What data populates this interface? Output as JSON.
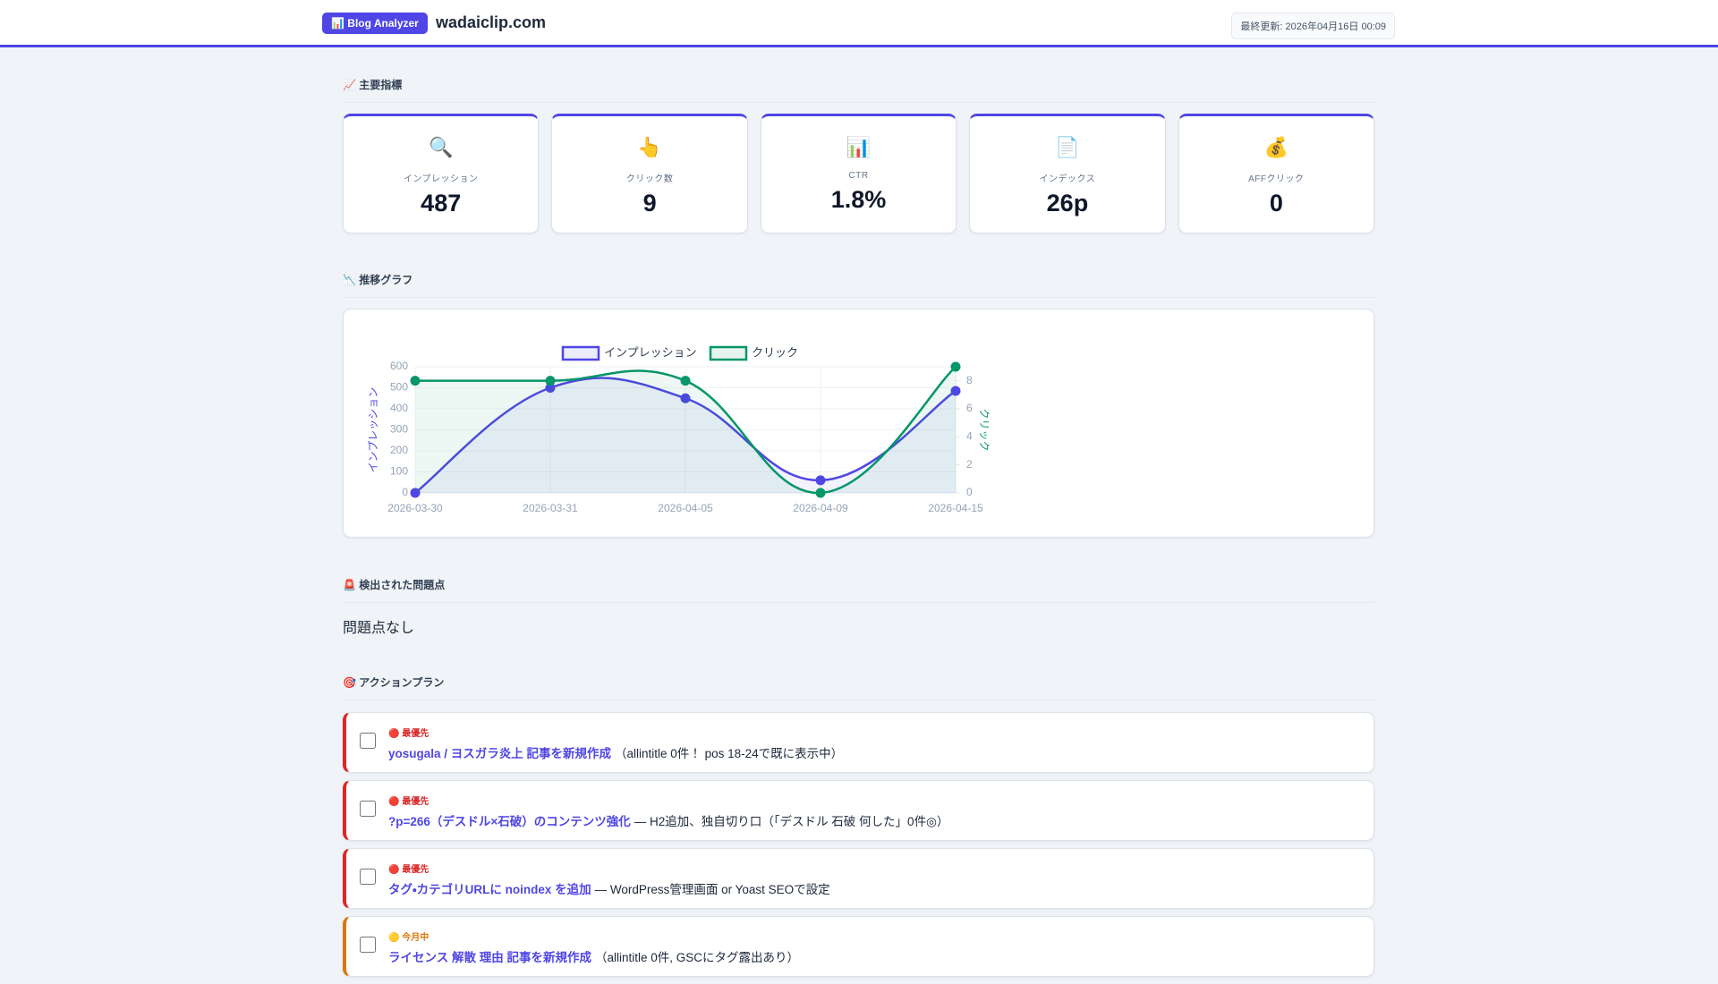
{
  "header": {
    "badge": "📊 Blog Analyzer",
    "site": "wadaiclip.com",
    "updated": "最終更新: 2026年04月16日 00:09"
  },
  "sections": {
    "metrics": "📈 主要指標",
    "graph": "📉 推移グラフ",
    "issues": "🚨 検出された問題点",
    "actions": "🎯 アクションプラン"
  },
  "metrics": [
    {
      "icon": "🔍",
      "label": "インプレッション",
      "value": 487
    },
    {
      "icon": "👆",
      "label": "クリック数",
      "value": 9
    },
    {
      "icon": "📊",
      "label": "CTR",
      "value": "1.8%"
    },
    {
      "icon": "📄",
      "label": "インデックス",
      "value": "26p"
    },
    {
      "icon": "💰",
      "label": "AFFクリック",
      "value": 0
    }
  ],
  "chart_data": {
    "type": "line",
    "categories": [
      "2026-03-30",
      "2026-03-31",
      "2026-04-05",
      "2026-04-09",
      "2026-04-15"
    ],
    "series": [
      {
        "name": "インプレッション",
        "color": "#4f46e5",
        "values": [
          0,
          500,
          450,
          60,
          485
        ]
      },
      {
        "name": "クリック",
        "color": "#059669",
        "axis": "y2",
        "values": [
          8,
          8,
          8,
          0,
          9
        ]
      }
    ],
    "ylabel": "インプレッション",
    "y2label": "クリック",
    "ylim": [
      0,
      600
    ],
    "yticks": [
      0,
      100,
      200,
      300,
      400,
      500,
      600
    ],
    "y2lim": [
      0,
      9
    ],
    "y2ticks": [
      0,
      2,
      4,
      6,
      8
    ],
    "grid": true
  },
  "issues": {
    "text": "問題点なし"
  },
  "actions": [
    {
      "priority": "🔴 最優先",
      "color": "#dc2626",
      "link": "yosugala / ヨスガラ炎上 記事を新規作成",
      "note": "（allintitle 0件！ pos 18-24で既に表示中）"
    },
    {
      "priority": "🔴 最優先",
      "color": "#dc2626",
      "link": "?p=266（デスドル×石破）のコンテンツ強化",
      "note": "— H2追加、独自切り口（「デスドル 石破 何した」0件◎）"
    },
    {
      "priority": "🔴 最優先",
      "color": "#dc2626",
      "link": "タグ・カテゴリURLに noindex を追加",
      "note": "— WordPress管理画面 or Yoast SEOで設定"
    },
    {
      "priority": "🟡 今月中",
      "color": "#d97706",
      "link": "ライセンス 解散 理由 記事を新規作成",
      "note": "（allintitle 0件, GSCにタグ露出あり）"
    }
  ]
}
